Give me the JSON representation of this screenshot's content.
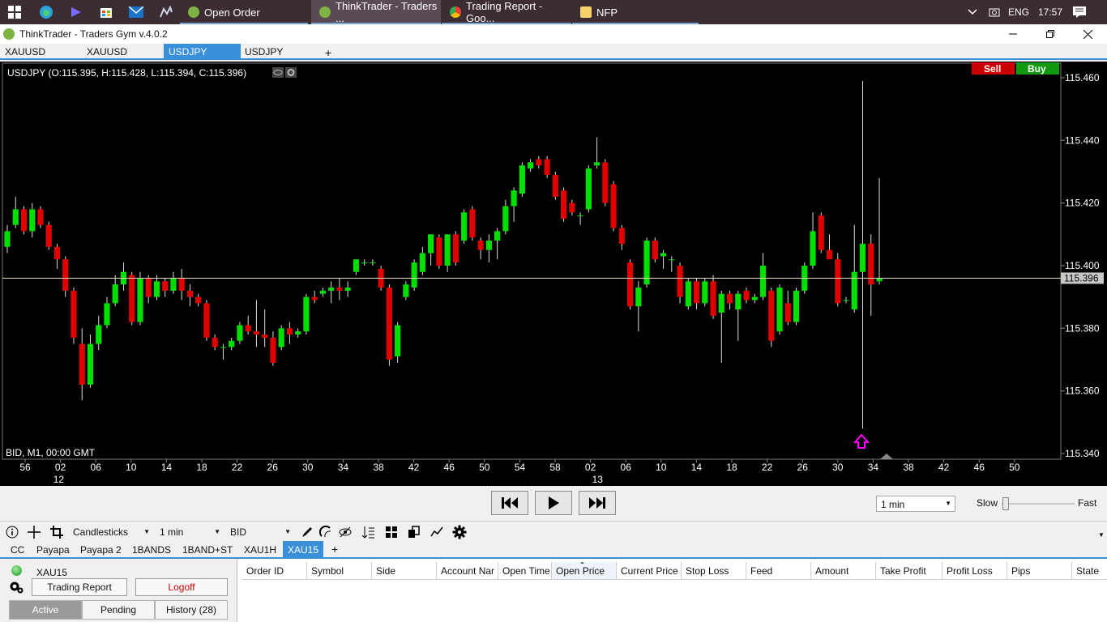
{
  "taskbar": {
    "apps": [
      {
        "label": "Open Order",
        "active": false
      },
      {
        "label": "ThinkTrader - Traders ...",
        "active": true
      },
      {
        "label": "Trading Report - Goo...",
        "active": false
      },
      {
        "label": "NFP",
        "active": false
      }
    ],
    "tray": {
      "lang": "ENG",
      "time": "17:57"
    }
  },
  "window": {
    "title": "ThinkTrader - Traders Gym v.4.0.2"
  },
  "symbol_tabs": [
    "XAUUSD",
    "XAUUSD",
    "USDJPY",
    "USDJPY"
  ],
  "symbol_tabs_active": 2,
  "chart": {
    "ohlc_label": "USDJPY (O:115.395, H:115.428, L:115.394, C:115.396)",
    "footer_label": "BID, M1, 00:00 GMT",
    "sell_label": "Sell",
    "buy_label": "Buy",
    "current_price_tag": "115.396",
    "colors": {
      "up": "#00e000",
      "down": "#e00000",
      "bg": "#000000",
      "sell": "#cc0000",
      "buy": "#119911",
      "price_line": "#e8e0c0",
      "arrow": "#ff00ff"
    }
  },
  "chart_data": {
    "type": "candlestick",
    "y_ticks": [
      "115.460",
      "115.440",
      "115.420",
      "115.400",
      "115.380",
      "115.360",
      "115.340"
    ],
    "ylim": [
      115.34,
      115.46
    ],
    "x_ticks": [
      "56",
      "02",
      "06",
      "10",
      "14",
      "18",
      "22",
      "26",
      "30",
      "34",
      "38",
      "42",
      "46",
      "50",
      "54",
      "58",
      "02",
      "06",
      "10",
      "14",
      "18",
      "22",
      "26",
      "30",
      "34",
      "38",
      "42",
      "46",
      "50"
    ],
    "date_labels": [
      "12",
      "13"
    ],
    "candles": [
      {
        "o": 115.406,
        "h": 115.413,
        "l": 115.404,
        "c": 115.411
      },
      {
        "o": 115.413,
        "h": 115.422,
        "l": 115.412,
        "c": 115.418
      },
      {
        "o": 115.418,
        "h": 115.419,
        "l": 115.41,
        "c": 115.411
      },
      {
        "o": 115.411,
        "h": 115.42,
        "l": 115.409,
        "c": 115.418
      },
      {
        "o": 115.418,
        "h": 115.419,
        "l": 115.412,
        "c": 115.413
      },
      {
        "o": 115.413,
        "h": 115.414,
        "l": 115.405,
        "c": 115.406
      },
      {
        "o": 115.406,
        "h": 115.407,
        "l": 115.399,
        "c": 115.402
      },
      {
        "o": 115.402,
        "h": 115.403,
        "l": 115.39,
        "c": 115.392
      },
      {
        "o": 115.392,
        "h": 115.393,
        "l": 115.375,
        "c": 115.377
      },
      {
        "o": 115.375,
        "h": 115.38,
        "l": 115.357,
        "c": 115.362
      },
      {
        "o": 115.362,
        "h": 115.378,
        "l": 115.361,
        "c": 115.375
      },
      {
        "o": 115.375,
        "h": 115.384,
        "l": 115.373,
        "c": 115.381
      },
      {
        "o": 115.381,
        "h": 115.39,
        "l": 115.38,
        "c": 115.388
      },
      {
        "o": 115.388,
        "h": 115.397,
        "l": 115.387,
        "c": 115.394
      },
      {
        "o": 115.394,
        "h": 115.401,
        "l": 115.392,
        "c": 115.398
      },
      {
        "o": 115.397,
        "h": 115.398,
        "l": 115.381,
        "c": 115.382
      },
      {
        "o": 115.382,
        "h": 115.398,
        "l": 115.381,
        "c": 115.396
      },
      {
        "o": 115.396,
        "h": 115.397,
        "l": 115.388,
        "c": 115.39
      },
      {
        "o": 115.39,
        "h": 115.397,
        "l": 115.389,
        "c": 115.395
      },
      {
        "o": 115.395,
        "h": 115.396,
        "l": 115.39,
        "c": 115.392
      },
      {
        "o": 115.392,
        "h": 115.398,
        "l": 115.391,
        "c": 115.396
      },
      {
        "o": 115.396,
        "h": 115.399,
        "l": 115.389,
        "c": 115.392
      },
      {
        "o": 115.392,
        "h": 115.394,
        "l": 115.387,
        "c": 115.39
      },
      {
        "o": 115.39,
        "h": 115.391,
        "l": 115.387,
        "c": 115.388
      },
      {
        "o": 115.388,
        "h": 115.389,
        "l": 115.376,
        "c": 115.377
      },
      {
        "o": 115.377,
        "h": 115.378,
        "l": 115.373,
        "c": 115.374
      },
      {
        "o": 115.374,
        "h": 115.375,
        "l": 115.37,
        "c": 115.374
      },
      {
        "o": 115.374,
        "h": 115.377,
        "l": 115.373,
        "c": 115.376
      },
      {
        "o": 115.376,
        "h": 115.382,
        "l": 115.375,
        "c": 115.381
      },
      {
        "o": 115.381,
        "h": 115.384,
        "l": 115.378,
        "c": 115.379
      },
      {
        "o": 115.379,
        "h": 115.389,
        "l": 115.374,
        "c": 115.378
      },
      {
        "o": 115.378,
        "h": 115.386,
        "l": 115.374,
        "c": 115.377
      },
      {
        "o": 115.377,
        "h": 115.379,
        "l": 115.368,
        "c": 115.369
      },
      {
        "o": 115.374,
        "h": 115.381,
        "l": 115.373,
        "c": 115.38
      },
      {
        "o": 115.38,
        "h": 115.382,
        "l": 115.375,
        "c": 115.378
      },
      {
        "o": 115.378,
        "h": 115.38,
        "l": 115.377,
        "c": 115.379
      },
      {
        "o": 115.379,
        "h": 115.391,
        "l": 115.378,
        "c": 115.39
      },
      {
        "o": 115.39,
        "h": 115.392,
        "l": 115.388,
        "c": 115.389
      },
      {
        "o": 115.391,
        "h": 115.393,
        "l": 115.39,
        "c": 115.392
      },
      {
        "o": 115.392,
        "h": 115.395,
        "l": 115.388,
        "c": 115.393
      },
      {
        "o": 115.393,
        "h": 115.396,
        "l": 115.389,
        "c": 115.392
      },
      {
        "o": 115.392,
        "h": 115.395,
        "l": 115.39,
        "c": 115.393
      },
      {
        "o": 115.398,
        "h": 115.402,
        "l": 115.397,
        "c": 115.402
      },
      {
        "o": 115.401,
        "h": 115.402,
        "l": 115.4,
        "c": 115.401
      },
      {
        "o": 115.401,
        "h": 115.402,
        "l": 115.4,
        "c": 115.401
      },
      {
        "o": 115.399,
        "h": 115.4,
        "l": 115.392,
        "c": 115.393
      },
      {
        "o": 115.393,
        "h": 115.394,
        "l": 115.368,
        "c": 115.37
      },
      {
        "o": 115.371,
        "h": 115.382,
        "l": 115.369,
        "c": 115.381
      },
      {
        "o": 115.39,
        "h": 115.395,
        "l": 115.389,
        "c": 115.394
      },
      {
        "o": 115.393,
        "h": 115.402,
        "l": 115.392,
        "c": 115.401
      },
      {
        "o": 115.398,
        "h": 115.406,
        "l": 115.397,
        "c": 115.404
      },
      {
        "o": 115.404,
        "h": 115.41,
        "l": 115.4,
        "c": 115.41
      },
      {
        "o": 115.409,
        "h": 115.41,
        "l": 115.399,
        "c": 115.4
      },
      {
        "o": 115.4,
        "h": 115.41,
        "l": 115.398,
        "c": 115.41
      },
      {
        "o": 115.41,
        "h": 115.411,
        "l": 115.4,
        "c": 115.401
      },
      {
        "o": 115.408,
        "h": 115.418,
        "l": 115.407,
        "c": 115.417
      },
      {
        "o": 115.418,
        "h": 115.419,
        "l": 115.408,
        "c": 115.409
      },
      {
        "o": 115.408,
        "h": 115.409,
        "l": 115.402,
        "c": 115.405
      },
      {
        "o": 115.405,
        "h": 115.41,
        "l": 115.401,
        "c": 115.408
      },
      {
        "o": 115.408,
        "h": 115.412,
        "l": 115.402,
        "c": 115.411
      },
      {
        "o": 115.411,
        "h": 115.421,
        "l": 115.41,
        "c": 115.419
      },
      {
        "o": 115.419,
        "h": 115.425,
        "l": 115.414,
        "c": 115.424
      },
      {
        "o": 115.423,
        "h": 115.433,
        "l": 115.422,
        "c": 115.432
      },
      {
        "o": 115.431,
        "h": 115.434,
        "l": 115.43,
        "c": 115.433
      },
      {
        "o": 115.434,
        "h": 115.435,
        "l": 115.431,
        "c": 115.432
      },
      {
        "o": 115.434,
        "h": 115.435,
        "l": 115.428,
        "c": 115.429
      },
      {
        "o": 115.429,
        "h": 115.43,
        "l": 115.421,
        "c": 115.422
      },
      {
        "o": 115.424,
        "h": 115.425,
        "l": 115.414,
        "c": 115.415
      },
      {
        "o": 115.42,
        "h": 115.421,
        "l": 115.416,
        "c": 115.417
      },
      {
        "o": 115.416,
        "h": 115.417,
        "l": 115.413,
        "c": 115.416
      },
      {
        "o": 115.418,
        "h": 115.432,
        "l": 115.417,
        "c": 115.431
      },
      {
        "o": 115.432,
        "h": 115.441,
        "l": 115.431,
        "c": 115.433
      },
      {
        "o": 115.433,
        "h": 115.434,
        "l": 115.419,
        "c": 115.42
      },
      {
        "o": 115.426,
        "h": 115.427,
        "l": 115.411,
        "c": 115.412
      },
      {
        "o": 115.412,
        "h": 115.413,
        "l": 115.405,
        "c": 115.407
      },
      {
        "o": 115.401,
        "h": 115.402,
        "l": 115.386,
        "c": 115.387
      },
      {
        "o": 115.387,
        "h": 115.395,
        "l": 115.379,
        "c": 115.393
      },
      {
        "o": 115.394,
        "h": 115.409,
        "l": 115.393,
        "c": 115.408
      },
      {
        "o": 115.408,
        "h": 115.409,
        "l": 115.401,
        "c": 115.402
      },
      {
        "o": 115.403,
        "h": 115.405,
        "l": 115.399,
        "c": 115.404
      },
      {
        "o": 115.402,
        "h": 115.403,
        "l": 115.398,
        "c": 115.402
      },
      {
        "o": 115.4,
        "h": 115.401,
        "l": 115.388,
        "c": 115.39
      },
      {
        "o": 115.387,
        "h": 115.396,
        "l": 115.386,
        "c": 115.395
      },
      {
        "o": 115.395,
        "h": 115.396,
        "l": 115.386,
        "c": 115.388
      },
      {
        "o": 115.388,
        "h": 115.396,
        "l": 115.387,
        "c": 115.395
      },
      {
        "o": 115.395,
        "h": 115.397,
        "l": 115.383,
        "c": 115.384
      },
      {
        "o": 115.385,
        "h": 115.392,
        "l": 115.369,
        "c": 115.391
      },
      {
        "o": 115.391,
        "h": 115.392,
        "l": 115.386,
        "c": 115.388
      },
      {
        "o": 115.386,
        "h": 115.392,
        "l": 115.376,
        "c": 115.391
      },
      {
        "o": 115.392,
        "h": 115.393,
        "l": 115.388,
        "c": 115.389
      },
      {
        "o": 115.389,
        "h": 115.391,
        "l": 115.388,
        "c": 115.39
      },
      {
        "o": 115.39,
        "h": 115.404,
        "l": 115.389,
        "c": 115.4
      },
      {
        "o": 115.392,
        "h": 115.393,
        "l": 115.374,
        "c": 115.376
      },
      {
        "o": 115.379,
        "h": 115.394,
        "l": 115.378,
        "c": 115.393
      },
      {
        "o": 115.388,
        "h": 115.392,
        "l": 115.381,
        "c": 115.382
      },
      {
        "o": 115.382,
        "h": 115.393,
        "l": 115.381,
        "c": 115.392
      },
      {
        "o": 115.392,
        "h": 115.401,
        "l": 115.391,
        "c": 115.4
      },
      {
        "o": 115.4,
        "h": 115.417,
        "l": 115.399,
        "c": 115.411
      },
      {
        "o": 115.416,
        "h": 115.417,
        "l": 115.404,
        "c": 115.405
      },
      {
        "o": 115.405,
        "h": 115.41,
        "l": 115.402,
        "c": 115.402
      },
      {
        "o": 115.402,
        "h": 115.404,
        "l": 115.387,
        "c": 115.388
      },
      {
        "o": 115.389,
        "h": 115.39,
        "l": 115.388,
        "c": 115.389
      },
      {
        "o": 115.386,
        "h": 115.413,
        "l": 115.385,
        "c": 115.398
      },
      {
        "o": 115.398,
        "h": 115.459,
        "l": 115.348,
        "c": 115.407
      },
      {
        "o": 115.407,
        "h": 115.41,
        "l": 115.384,
        "c": 115.394
      },
      {
        "o": 115.395,
        "h": 115.428,
        "l": 115.394,
        "c": 115.396
      }
    ],
    "x_axis_title": "",
    "y_axis_title": ""
  },
  "playback": {
    "timeframe": "1 min",
    "slow_label": "Slow",
    "fast_label": "Fast",
    "speed": 0.05
  },
  "toolbar": {
    "chart_type": "Candlesticks",
    "timeframe": "1 min",
    "price_type": "BID"
  },
  "template_tabs": [
    "CC",
    "Payapa",
    "Payapa 2",
    "1BANDS",
    "1BAND+ST",
    "XAU1H",
    "XAU15"
  ],
  "template_tabs_active": 6,
  "account": {
    "name": "XAU15",
    "trading_report_label": "Trading Report",
    "logoff_label": "Logoff"
  },
  "order_tabs": {
    "active": "Active",
    "pending": "Pending",
    "history": "History (28)"
  },
  "order_columns": [
    "Order ID",
    "Symbol",
    "Side",
    "Account Nar",
    "Open Time",
    "Open Price",
    "Current Price",
    "Stop Loss",
    "Feed",
    "Amount",
    "Take Profit",
    "Profit Loss",
    "Pips",
    "State"
  ]
}
